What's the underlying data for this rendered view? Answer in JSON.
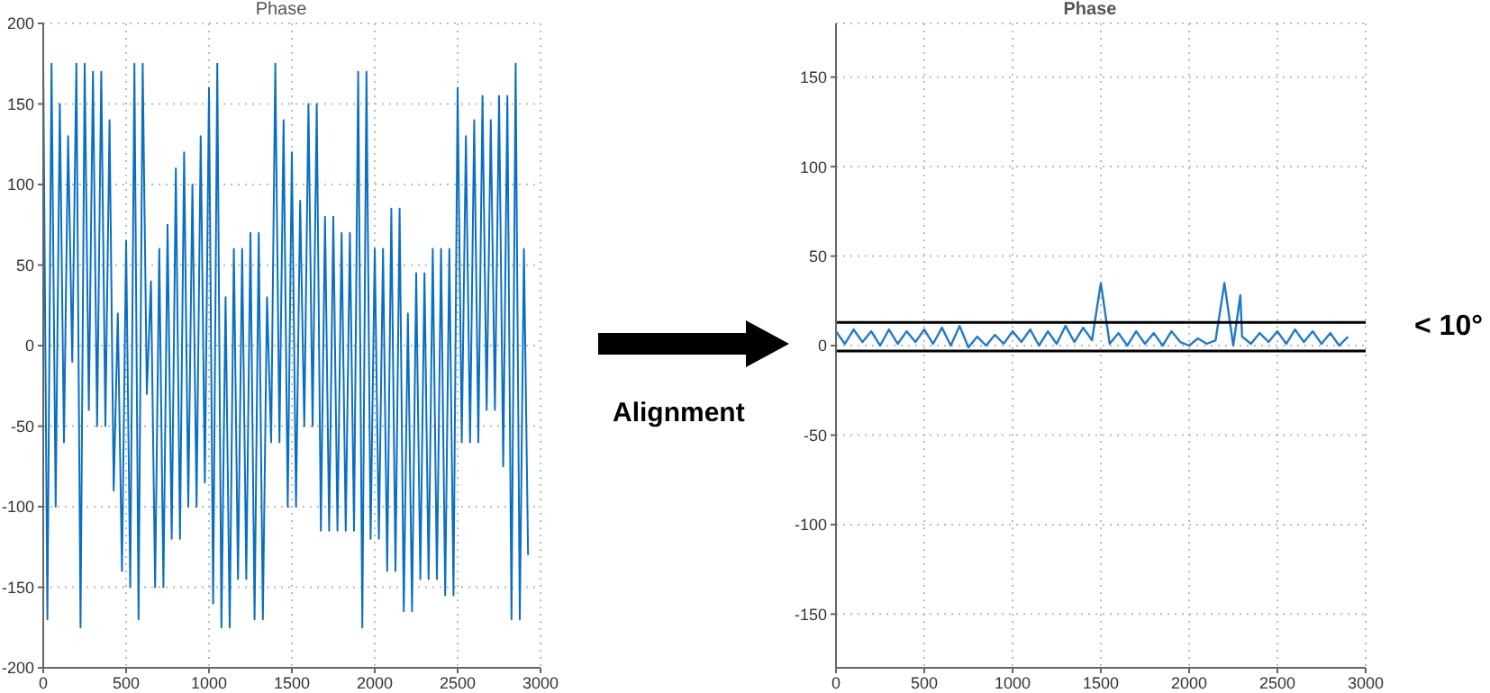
{
  "chart_data": [
    {
      "type": "line",
      "title": "Phase",
      "xlim": [
        0,
        3000
      ],
      "ylim": [
        -200,
        200
      ],
      "xticks": [
        0,
        500,
        1000,
        1500,
        2000,
        2500,
        3000
      ],
      "yticks": [
        -200,
        -150,
        -100,
        -50,
        0,
        50,
        100,
        150,
        200
      ],
      "grid": true,
      "x": [
        0,
        25,
        50,
        75,
        100,
        125,
        150,
        175,
        200,
        225,
        250,
        275,
        300,
        325,
        350,
        375,
        400,
        425,
        450,
        475,
        500,
        525,
        550,
        575,
        600,
        625,
        650,
        675,
        700,
        725,
        750,
        775,
        800,
        825,
        850,
        875,
        900,
        925,
        950,
        975,
        1000,
        1025,
        1050,
        1075,
        1100,
        1125,
        1150,
        1175,
        1200,
        1225,
        1250,
        1275,
        1300,
        1325,
        1350,
        1375,
        1400,
        1425,
        1450,
        1475,
        1500,
        1525,
        1550,
        1575,
        1600,
        1625,
        1650,
        1675,
        1700,
        1725,
        1750,
        1775,
        1800,
        1825,
        1850,
        1875,
        1900,
        1925,
        1950,
        1975,
        2000,
        2025,
        2050,
        2075,
        2100,
        2125,
        2150,
        2175,
        2200,
        2225,
        2250,
        2275,
        2300,
        2325,
        2350,
        2375,
        2400,
        2425,
        2450,
        2475,
        2500,
        2525,
        2550,
        2575,
        2600,
        2625,
        2650,
        2675,
        2700,
        2725,
        2750,
        2775,
        2800,
        2825,
        2850,
        2875,
        2900,
        2925
      ],
      "series": [
        {
          "color": "#0b6fc1",
          "values": [
            175,
            -170,
            175,
            -100,
            150,
            -60,
            130,
            -10,
            175,
            -175,
            175,
            -40,
            170,
            -50,
            170,
            -50,
            140,
            -90,
            20,
            -140,
            65,
            -150,
            175,
            -170,
            175,
            -30,
            40,
            -150,
            60,
            -150,
            75,
            -120,
            110,
            -120,
            120,
            -100,
            100,
            -100,
            130,
            -85,
            160,
            -160,
            175,
            -175,
            30,
            -175,
            60,
            -145,
            60,
            -145,
            70,
            -170,
            70,
            -170,
            30,
            -60,
            175,
            -60,
            140,
            -100,
            120,
            -100,
            90,
            -50,
            150,
            -50,
            150,
            -115,
            80,
            -115,
            80,
            -115,
            70,
            -115,
            70,
            -115,
            170,
            -175,
            170,
            -120,
            60,
            -120,
            60,
            -140,
            85,
            -140,
            85,
            -165,
            20,
            -165,
            45,
            -145,
            45,
            -145,
            60,
            -145,
            60,
            -155,
            60,
            -155,
            160,
            -60,
            130,
            -60,
            140,
            -60,
            155,
            -40,
            140,
            -40,
            155,
            -75,
            155,
            -170,
            175,
            -170,
            60,
            -130
          ]
        }
      ]
    },
    {
      "type": "line",
      "title": "Phase",
      "xlim": [
        0,
        3000
      ],
      "ylim": [
        -180,
        180
      ],
      "xticks": [
        0,
        500,
        1000,
        1500,
        2000,
        2500,
        3000
      ],
      "yticks": [
        -150,
        -100,
        -50,
        0,
        50,
        100,
        150
      ],
      "grid": true,
      "x": [
        0,
        50,
        100,
        150,
        200,
        250,
        300,
        350,
        400,
        450,
        500,
        550,
        600,
        650,
        700,
        750,
        800,
        850,
        900,
        950,
        1000,
        1050,
        1100,
        1150,
        1200,
        1250,
        1300,
        1350,
        1400,
        1450,
        1500,
        1550,
        1600,
        1650,
        1700,
        1750,
        1800,
        1850,
        1900,
        1950,
        2000,
        2050,
        2100,
        2150,
        2200,
        2250,
        2290,
        2300,
        2350,
        2400,
        2450,
        2500,
        2550,
        2600,
        2650,
        2700,
        2750,
        2800,
        2850,
        2900
      ],
      "series": [
        {
          "color": "#1f7acb",
          "values": [
            8,
            1,
            9,
            2,
            8,
            0,
            9,
            1,
            8,
            2,
            9,
            1,
            10,
            0,
            11,
            -1,
            5,
            0,
            6,
            1,
            8,
            2,
            9,
            0,
            8,
            1,
            11,
            2,
            10,
            3,
            35,
            1,
            7,
            0,
            8,
            1,
            7,
            0,
            8,
            2,
            0,
            4,
            1,
            3,
            35,
            0,
            28,
            5,
            1,
            7,
            2,
            8,
            1,
            9,
            2,
            8,
            1,
            7,
            0,
            5
          ]
        }
      ],
      "ref_lines": [
        {
          "axis": "y",
          "value": 13,
          "color": "#000000"
        },
        {
          "axis": "y",
          "value": -3,
          "color": "#000000"
        }
      ],
      "annotations": [
        "Alignment",
        "< 10°"
      ]
    }
  ]
}
